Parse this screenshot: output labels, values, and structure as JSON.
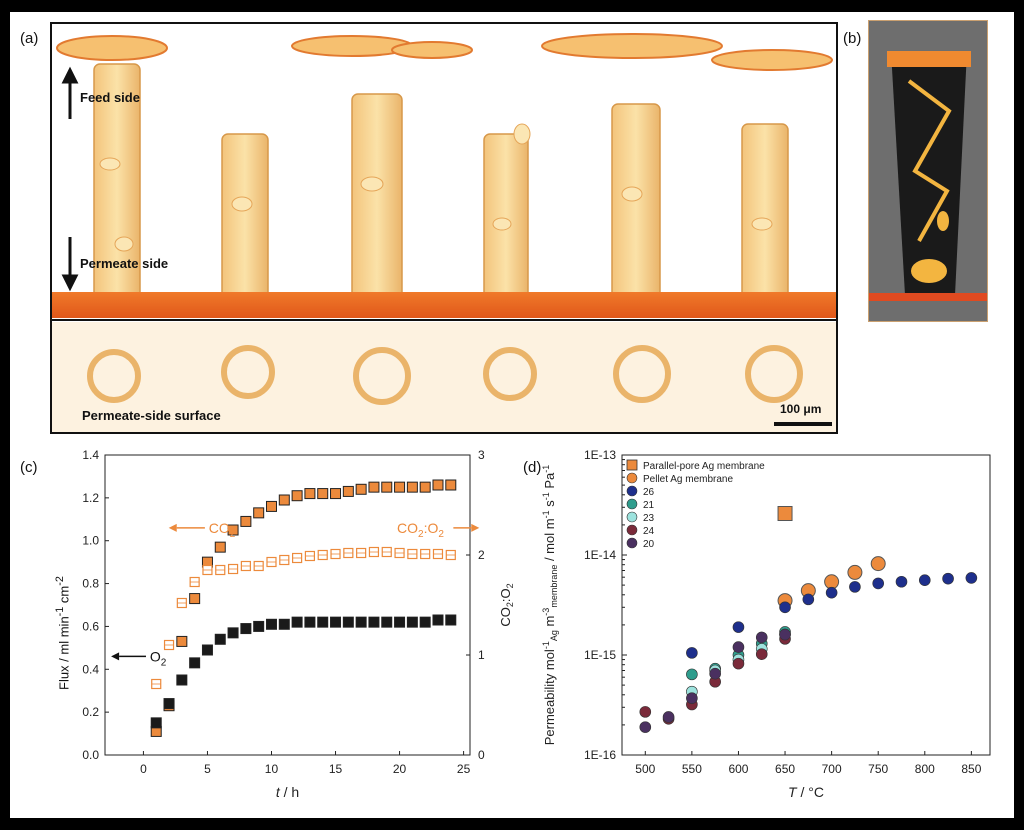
{
  "panel_labels": {
    "a": "(a)",
    "b": "(b)",
    "c": "(c)",
    "d": "(d)"
  },
  "micrograph": {
    "feed_side": "Feed side",
    "permeate_side": "Permeate side",
    "surface_label": "Permeate-side surface",
    "scale_bar": "100 μm"
  },
  "chart_data": [
    {
      "type": "scatter",
      "panel": "(c)",
      "xlabel": "t / h",
      "ylabel": "Flux / ml min⁻¹ cm⁻²",
      "y2label": "CO₂:O₂",
      "xlim": [
        -3,
        25.5
      ],
      "ylim": [
        0,
        1.4
      ],
      "y2lim": [
        0,
        3
      ],
      "xticks": [
        "0",
        "5",
        "10",
        "15",
        "20",
        "25"
      ],
      "yticks": [
        "0.0",
        "0.2",
        "0.4",
        "0.6",
        "0.8",
        "1.0",
        "1.2",
        "1.4"
      ],
      "y2ticks": [
        "0",
        "1",
        "2",
        "3"
      ],
      "annotations": {
        "co2": "CO₂",
        "o2": "O₂",
        "ratio": "CO₂:O₂"
      },
      "series": [
        {
          "name": "CO2",
          "axis": "left",
          "color": "#ec8a3c",
          "marker": "square-filled",
          "x": [
            1,
            2,
            3,
            4,
            5,
            6,
            7,
            8,
            9,
            10,
            11,
            12,
            13,
            14,
            15,
            16,
            17,
            18,
            19,
            20,
            21,
            22,
            23,
            24
          ],
          "y": [
            0.11,
            0.23,
            0.53,
            0.73,
            0.9,
            0.97,
            1.05,
            1.09,
            1.13,
            1.16,
            1.19,
            1.21,
            1.22,
            1.22,
            1.22,
            1.23,
            1.24,
            1.25,
            1.25,
            1.25,
            1.25,
            1.25,
            1.26,
            1.26
          ]
        },
        {
          "name": "O2",
          "axis": "left",
          "color": "#1a1a1a",
          "marker": "square-filled",
          "x": [
            1,
            2,
            3,
            4,
            5,
            6,
            7,
            8,
            9,
            10,
            11,
            12,
            13,
            14,
            15,
            16,
            17,
            18,
            19,
            20,
            21,
            22,
            23,
            24
          ],
          "y": [
            0.15,
            0.24,
            0.35,
            0.43,
            0.49,
            0.54,
            0.57,
            0.59,
            0.6,
            0.61,
            0.61,
            0.62,
            0.62,
            0.62,
            0.62,
            0.62,
            0.62,
            0.62,
            0.62,
            0.62,
            0.62,
            0.62,
            0.63,
            0.63
          ]
        },
        {
          "name": "CO2:O2",
          "axis": "right",
          "color": "#ec8a3c",
          "marker": "square-open",
          "x": [
            1,
            2,
            3,
            4,
            5,
            6,
            7,
            8,
            9,
            10,
            11,
            12,
            13,
            14,
            15,
            16,
            17,
            18,
            19,
            20,
            21,
            22,
            23,
            24
          ],
          "y": [
            0.71,
            1.1,
            1.52,
            1.73,
            1.85,
            1.85,
            1.86,
            1.89,
            1.89,
            1.93,
            1.95,
            1.97,
            1.99,
            2.0,
            2.01,
            2.02,
            2.02,
            2.03,
            2.03,
            2.02,
            2.01,
            2.01,
            2.01,
            2.0
          ]
        }
      ]
    },
    {
      "type": "scatter",
      "panel": "(d)",
      "xlabel": "T / °C",
      "ylabel": "Permeability mol⁻¹Ag m⁻³membrane / mol m⁻¹ s⁻¹ Pa⁻¹",
      "yscale": "log",
      "xlim": [
        475,
        870
      ],
      "ylim": [
        1e-16,
        1e-13
      ],
      "xticks": [
        "500",
        "550",
        "600",
        "650",
        "700",
        "750",
        "800",
        "850"
      ],
      "yticks": [
        "1E-16",
        "1E-15",
        "1E-14",
        "1E-13"
      ],
      "legend": {
        "position": "top-left"
      },
      "series": [
        {
          "name": "Parallel-pore Ag membrane",
          "color": "#ec8a3c",
          "marker": "square",
          "x": [
            650
          ],
          "y": [
            2.6e-14
          ]
        },
        {
          "name": "Pellet Ag membrane",
          "color": "#ec8a3c",
          "marker": "circle-large",
          "x": [
            650,
            675,
            700,
            725,
            750
          ],
          "y": [
            3.5e-15,
            4.4e-15,
            5.4e-15,
            6.7e-15,
            8.2e-15
          ]
        },
        {
          "name": "26",
          "color": "#1e2f8c",
          "marker": "circle",
          "x": [
            550,
            600,
            650,
            675,
            700,
            725,
            750,
            775,
            800,
            825,
            850
          ],
          "y": [
            1.05e-15,
            1.9e-15,
            3e-15,
            3.6e-15,
            4.2e-15,
            4.8e-15,
            5.2e-15,
            5.4e-15,
            5.6e-15,
            5.8e-15,
            5.9e-15
          ]
        },
        {
          "name": "21",
          "color": "#2f9d8d",
          "marker": "circle",
          "x": [
            550,
            575,
            600,
            625,
            650
          ],
          "y": [
            6.4e-16,
            7.3e-16,
            1e-15,
            1.3e-15,
            1.7e-15
          ]
        },
        {
          "name": "23",
          "color": "#9de3de",
          "marker": "circle",
          "x": [
            550,
            575,
            600,
            625,
            650
          ],
          "y": [
            4.3e-16,
            7e-16,
            9e-16,
            1.15e-15,
            1.6e-15
          ]
        },
        {
          "name": "24",
          "color": "#7a2a3a",
          "marker": "circle",
          "x": [
            500,
            525,
            550,
            575,
            600,
            625,
            650
          ],
          "y": [
            2.7e-16,
            2.3e-16,
            3.2e-16,
            5.4e-16,
            8.2e-16,
            1.02e-15,
            1.45e-15
          ]
        },
        {
          "name": "20",
          "color": "#4a3060",
          "marker": "circle",
          "x": [
            500,
            525,
            550,
            575,
            600,
            625,
            650
          ],
          "y": [
            1.9e-16,
            2.4e-16,
            3.7e-16,
            6.5e-16,
            1.2e-15,
            1.5e-15,
            1.6e-15
          ]
        }
      ]
    }
  ]
}
